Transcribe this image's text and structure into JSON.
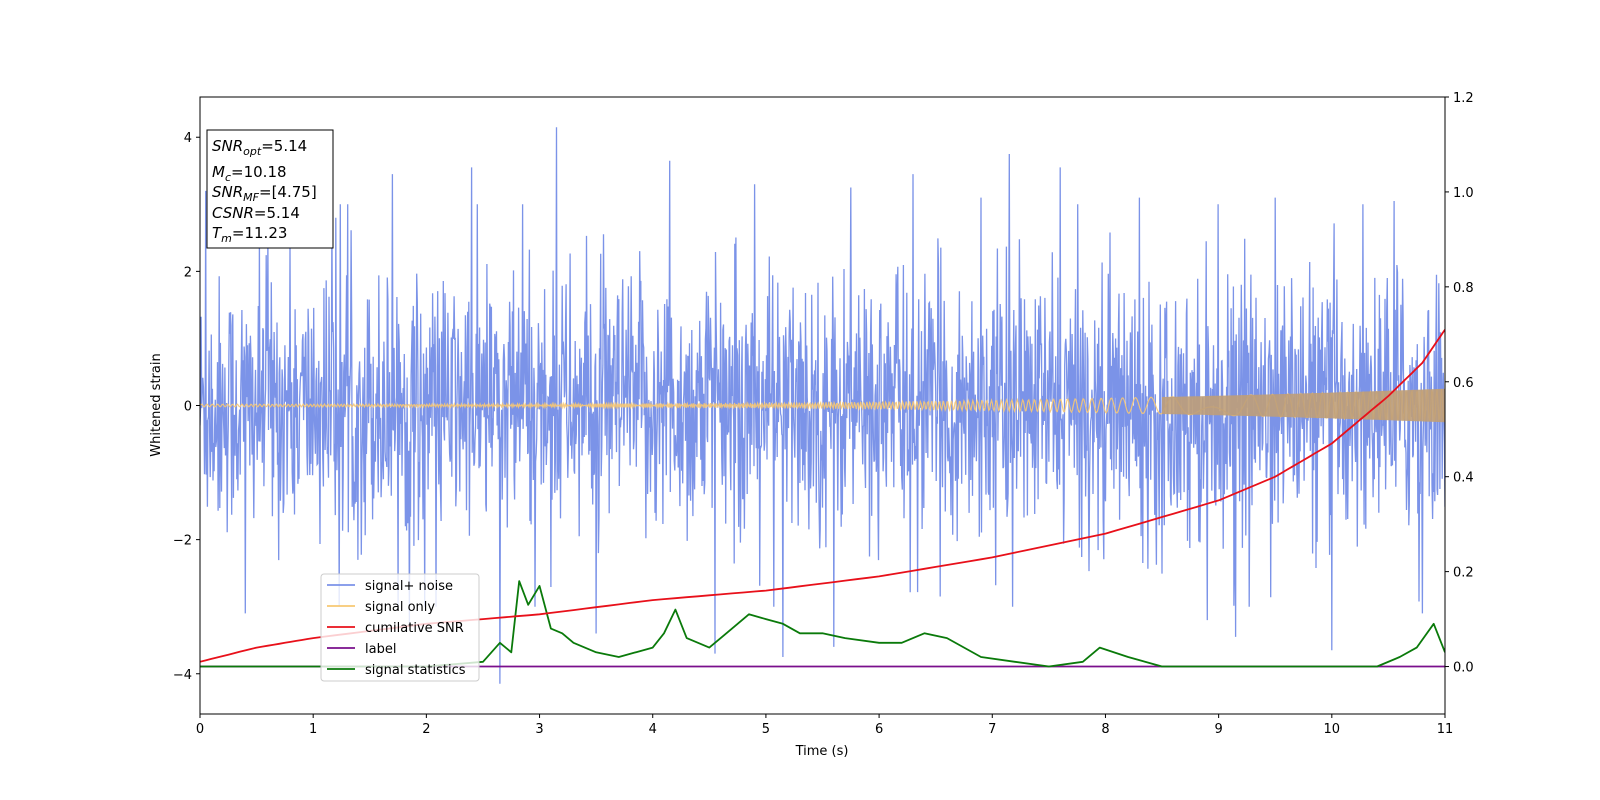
{
  "chart_data": {
    "type": "line",
    "xlabel": "Time (s)",
    "ylabel": "Whitened strain",
    "xlim": [
      0,
      11
    ],
    "ylim": [
      -4.6,
      4.6
    ],
    "y2lim": [
      -0.1,
      1.2
    ],
    "xticks": [
      "0",
      "1",
      "2",
      "3",
      "4",
      "5",
      "6",
      "7",
      "8",
      "9",
      "10",
      "11"
    ],
    "yticks": [
      "4",
      "2",
      "0",
      "−2",
      "−4"
    ],
    "y2ticks": [
      "0.0",
      "0.2",
      "0.4",
      "0.6",
      "0.8",
      "1.0",
      "1.2"
    ],
    "legend_position": "lower-left",
    "legend": [
      "signal+ noise",
      "signal only",
      "cumilative SNR",
      "label",
      "signal statistics"
    ],
    "colors": {
      "noise": "#7b93e8",
      "signal": "#f7c873",
      "signal_overlap": "#bf9f78",
      "cumulative_snr": "#e8101a",
      "label": "#7a0f8c",
      "statistics": "#0a7a0a"
    },
    "series": [
      {
        "name": "signal+ noise",
        "axis": "left",
        "description_values": {
          "band_min": -2.0,
          "band_max": 2.0,
          "peak_max": 4.15,
          "peak_min": -4.15
        },
        "spikes": [
          [
            0.05,
            3.2
          ],
          [
            0.4,
            -3.1
          ],
          [
            0.6,
            2.5
          ],
          [
            1.2,
            2.8
          ],
          [
            1.7,
            3.45
          ],
          [
            1.85,
            -3.3
          ],
          [
            2.4,
            3.55
          ],
          [
            2.65,
            -4.15
          ],
          [
            2.85,
            3.0
          ],
          [
            3.15,
            4.15
          ],
          [
            3.5,
            -3.4
          ],
          [
            4.15,
            3.65
          ],
          [
            4.55,
            -3.7
          ],
          [
            4.9,
            3.3
          ],
          [
            5.15,
            -3.75
          ],
          [
            5.6,
            -3.6
          ],
          [
            5.75,
            3.25
          ],
          [
            6.3,
            3.45
          ],
          [
            6.9,
            3.1
          ],
          [
            7.15,
            3.75
          ],
          [
            7.6,
            3.55
          ],
          [
            8.3,
            3.1
          ],
          [
            8.9,
            -3.2
          ],
          [
            9.15,
            -3.45
          ],
          [
            9.5,
            3.1
          ],
          [
            10.0,
            -3.65
          ],
          [
            10.55,
            3.05
          ],
          [
            10.8,
            -3.1
          ]
        ]
      },
      {
        "name": "signal only",
        "axis": "left",
        "amplitude_start": 0.02,
        "amplitude_end": 0.25
      },
      {
        "name": "cumilative SNR",
        "axis": "right",
        "x": [
          0,
          0.5,
          1,
          2,
          3,
          4,
          5,
          6,
          7,
          8,
          9,
          9.5,
          10,
          10.5,
          10.8,
          11
        ],
        "values": [
          0.01,
          0.04,
          0.06,
          0.09,
          0.11,
          0.14,
          0.16,
          0.19,
          0.23,
          0.28,
          0.35,
          0.4,
          0.47,
          0.57,
          0.64,
          0.71
        ]
      },
      {
        "name": "label",
        "axis": "right",
        "x": [
          0,
          11
        ],
        "values": [
          0.0,
          0.0
        ]
      },
      {
        "name": "signal statistics",
        "axis": "right",
        "x": [
          0,
          1,
          2,
          2.5,
          2.65,
          2.75,
          2.82,
          2.9,
          3.0,
          3.1,
          3.2,
          3.3,
          3.5,
          3.7,
          4.0,
          4.1,
          4.2,
          4.3,
          4.5,
          4.7,
          4.85,
          5.0,
          5.15,
          5.3,
          5.5,
          5.7,
          6.0,
          6.2,
          6.4,
          6.6,
          6.9,
          7.2,
          7.5,
          7.8,
          7.95,
          8.2,
          8.5,
          9.0,
          9.5,
          10.0,
          10.4,
          10.6,
          10.75,
          10.9,
          11.0
        ],
        "values": [
          0.0,
          0.0,
          0.0,
          0.01,
          0.05,
          0.03,
          0.18,
          0.13,
          0.17,
          0.08,
          0.07,
          0.05,
          0.03,
          0.02,
          0.04,
          0.07,
          0.12,
          0.06,
          0.04,
          0.08,
          0.11,
          0.1,
          0.09,
          0.07,
          0.07,
          0.06,
          0.05,
          0.05,
          0.07,
          0.06,
          0.02,
          0.01,
          0.0,
          0.01,
          0.04,
          0.02,
          0.0,
          0.0,
          0.0,
          0.0,
          0.0,
          0.02,
          0.04,
          0.09,
          0.03
        ]
      }
    ],
    "info_box": {
      "snr_opt": {
        "name": "SNR",
        "sub": "opt",
        "value": "=5.14"
      },
      "mc": {
        "name": "M",
        "sub": "c",
        "value": "=10.18"
      },
      "snr_mf": {
        "name": "SNR",
        "sub": "MF",
        "value": "=[4.75]"
      },
      "csnr": {
        "name": "CSNR",
        "sub": "",
        "value": "=5.14"
      },
      "tm": {
        "name": "T",
        "sub": "m",
        "value": "=11.23"
      }
    }
  }
}
